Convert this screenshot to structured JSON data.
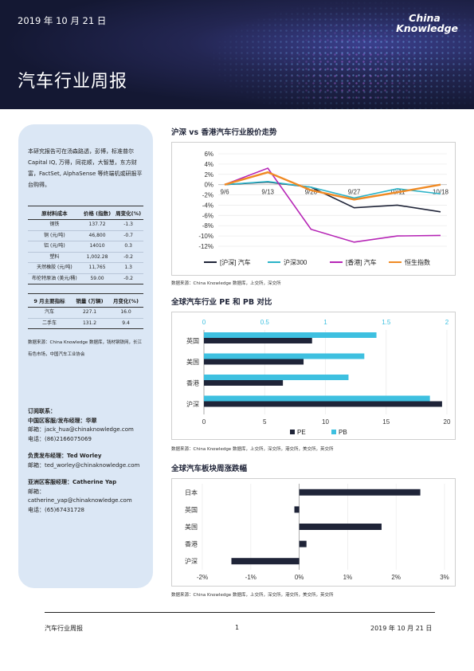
{
  "header": {
    "date": "2019 年 10 月 21 日",
    "title": "汽车行业周报",
    "logo_line1": "China",
    "logo_line2": "Knowledge"
  },
  "left_panel": {
    "intro": "本研究报告可在汤森路透，彭博，标准普尔 Capital IQ, 万得，同花顺，大智慧，东方财富，FactSet, AlphaSense 等终端机或研报平台购得。",
    "table1": {
      "headers": [
        "原材料成本",
        "价格 (指数)",
        "周变化(%)"
      ],
      "rows": [
        [
          "钢铁",
          "137.72",
          "-1.3"
        ],
        [
          "铜 (元/吨)",
          "46,800",
          "-0.7"
        ],
        [
          "铝 (元/吨)",
          "14010",
          "0.3"
        ],
        [
          "塑料",
          "1,002.28",
          "-0.2"
        ],
        [
          "天然橡胶 (元/吨)",
          "11,765",
          "1.3"
        ],
        [
          "布伦特原油 (美元/桶)",
          "59.00",
          "-0.2"
        ]
      ]
    },
    "table2": {
      "headers": [
        "9 月主要指标",
        "销量 (万辆)",
        "月变化(%)"
      ],
      "rows": [
        [
          "汽车",
          "227.1",
          "16.0"
        ],
        [
          "二手车",
          "131.2",
          "9.4"
        ]
      ]
    },
    "source": "数据来源：China Knowledge 数据库，钱材钢铁网，长江有色市场，中国汽车工业协会",
    "contacts": [
      {
        "heading": "订阅联系：",
        "lines": []
      },
      {
        "heading": "中国区客服/发布经理：华翠",
        "lines": [
          "邮箱：jack_hua@chinaknowledge.com",
          "电话：(86)2166075069"
        ]
      },
      {
        "heading": "负责发布经理：Ted Worley",
        "lines": [
          "邮箱：ted_worley@chinaknowledge.com"
        ]
      },
      {
        "heading": "亚洲区客服经理：Catherine Yap",
        "lines": [
          "邮箱：catherine_yap@chinaknowledge.com",
          "电话：(65)67431728"
        ]
      }
    ]
  },
  "sections": {
    "chart1_title": "沪深 vs 香港汽车行业股价走势",
    "chart1_source": "数据来源：China Knowledge 数据库，上交所，深交所",
    "chart2_title": "全球汽车行业 PE 和 PB 对比",
    "chart2_source": "数据来源：China Knowledge 数据库，上交所，深交所，港交所，美交所，英交所",
    "chart3_title": "全球汽车板块周涨跌幅",
    "chart3_source": "数据来源：China Knowledge 数据库，上交所，深交所，港交所，美交所，英交所"
  },
  "footer": {
    "left": "汽车行业周报",
    "page": "1",
    "right": "2019 年 10 月 21 日"
  },
  "chart_data": [
    {
      "type": "line",
      "x": [
        "9/6",
        "9/13",
        "9/20",
        "9/27",
        "10/11",
        "10/18"
      ],
      "ylim": [
        -12,
        6
      ],
      "yticks": [
        6,
        4,
        2,
        0,
        -2,
        -4,
        -6,
        -8,
        -10,
        -12
      ],
      "series": [
        {
          "name": "[沪深] 汽车",
          "color": "#1f2438",
          "values": [
            0,
            0.5,
            -0.5,
            -4.5,
            -4,
            -5.3
          ]
        },
        {
          "name": "沪深300",
          "color": "#2bb3c8",
          "values": [
            0,
            0.6,
            -0.5,
            -2.6,
            -0.8,
            -1.8
          ]
        },
        {
          "name": "[香港] 汽车",
          "color": "#b626b6",
          "values": [
            0,
            3.2,
            -8.7,
            -11.2,
            -10,
            -9.9
          ]
        },
        {
          "name": "恒生指数",
          "color": "#f08a24",
          "values": [
            0,
            2.4,
            -1.1,
            -2.9,
            -1.5,
            0
          ]
        }
      ],
      "legend": "bottom"
    },
    {
      "type": "bar",
      "orientation": "horizontal",
      "categories": [
        "英国",
        "美国",
        "香港",
        "沪深"
      ],
      "series": [
        {
          "name": "PE",
          "color": "#1f2438",
          "axis": "bottom",
          "values": [
            8.9,
            8.2,
            6.5,
            19.6
          ]
        },
        {
          "name": "PB",
          "color": "#3ec0e0",
          "axis": "top",
          "values": [
            1.42,
            1.32,
            1.19,
            1.86
          ]
        }
      ],
      "bottom_axis": {
        "lim": [
          0,
          20
        ],
        "ticks": [
          "0",
          "5",
          "10",
          "15",
          "20"
        ]
      },
      "top_axis": {
        "lim": [
          0,
          2
        ],
        "ticks": [
          "0",
          "0.5",
          "1",
          "1.5",
          "2"
        ]
      },
      "legend": "bottom"
    },
    {
      "type": "bar",
      "orientation": "horizontal",
      "categories": [
        "日本",
        "英国",
        "美国",
        "香港",
        "沪深"
      ],
      "series": [
        {
          "name": "",
          "color": "#1f2438",
          "values": [
            2.5,
            -0.1,
            1.7,
            0.15,
            -1.4
          ]
        }
      ],
      "xlim": [
        -2,
        3
      ],
      "xticks": [
        "-2%",
        "-1%",
        "0%",
        "1%",
        "2%",
        "3%"
      ]
    }
  ]
}
